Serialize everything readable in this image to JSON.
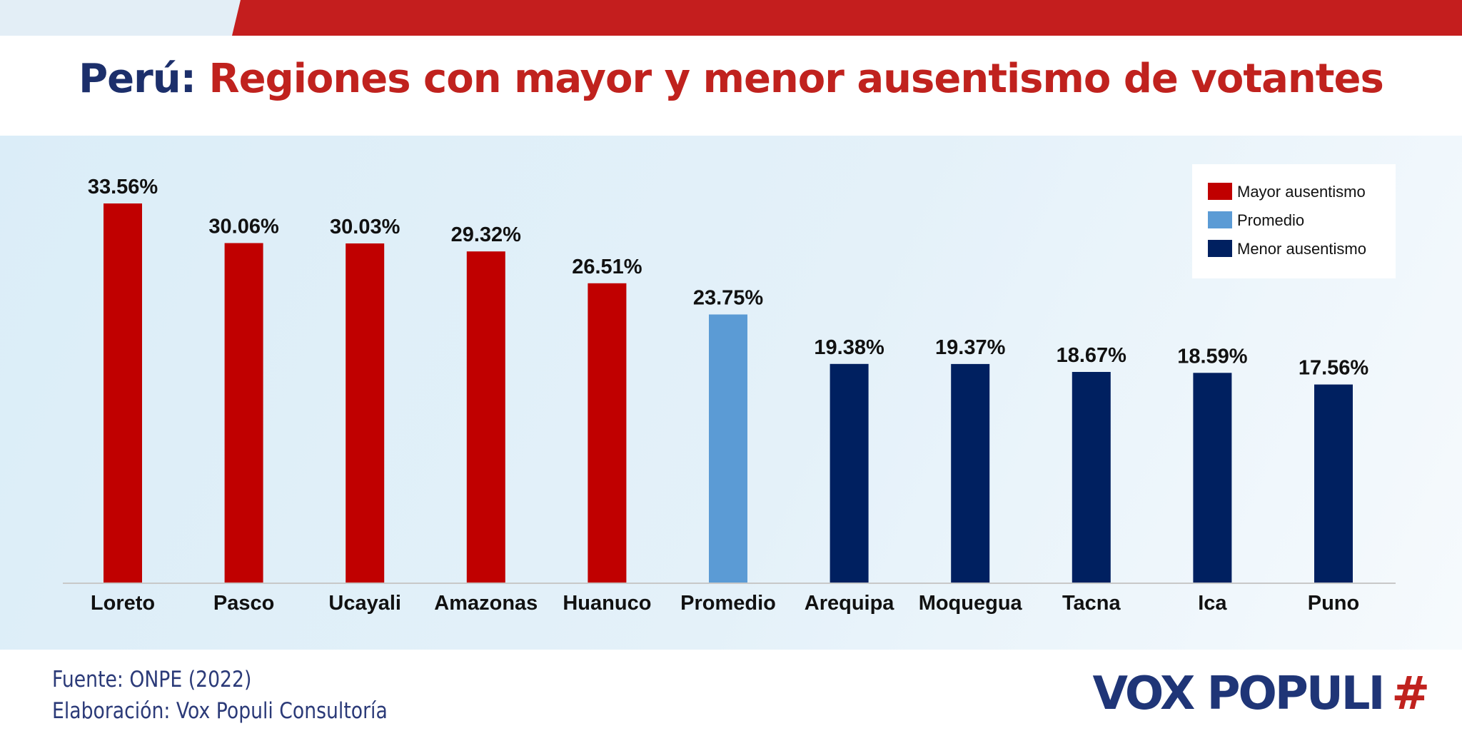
{
  "title": {
    "country": "Perú:",
    "main": "Regiones con mayor y menor ausentismo de votantes"
  },
  "colors": {
    "mayor": "#c00000",
    "promedio": "#5b9bd5",
    "menor": "#002060",
    "title_blue": "#1c2f6b",
    "title_red": "#c0221e"
  },
  "chart_data": {
    "type": "bar",
    "categories": [
      "Loreto",
      "Pasco",
      "Ucayali",
      "Amazonas",
      "Huanuco",
      "Promedio",
      "Arequipa",
      "Moquegua",
      "Tacna",
      "Ica",
      "Puno"
    ],
    "values": [
      33.56,
      30.06,
      30.03,
      29.32,
      26.51,
      23.75,
      19.38,
      19.37,
      18.67,
      18.59,
      17.56
    ],
    "value_labels": [
      "33.56%",
      "30.06%",
      "30.03%",
      "29.32%",
      "26.51%",
      "23.75%",
      "19.38%",
      "19.37%",
      "18.67%",
      "18.59%",
      "17.56%"
    ],
    "groups": [
      "mayor",
      "mayor",
      "mayor",
      "mayor",
      "mayor",
      "promedio",
      "menor",
      "menor",
      "menor",
      "menor",
      "menor"
    ],
    "legend": [
      {
        "key": "mayor",
        "label": "Mayor ausentismo"
      },
      {
        "key": "promedio",
        "label": "Promedio"
      },
      {
        "key": "menor",
        "label": "Menor ausentismo"
      }
    ],
    "legend_position": "top-right",
    "ylim": [
      0,
      35
    ],
    "grid": false,
    "xlabel": "",
    "ylabel": ""
  },
  "footer": {
    "source": "Fuente: ONPE (2022)",
    "credit": "Elaboración: Vox Populi Consultoría"
  },
  "logo": {
    "text": "VOX POPULI",
    "symbol": "#"
  }
}
